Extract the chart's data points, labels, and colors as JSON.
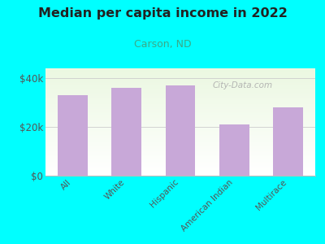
{
  "title": "Median per capita income in 2022",
  "subtitle": "Carson, ND",
  "categories": [
    "All",
    "White",
    "Hispanic",
    "American Indian",
    "Multirace"
  ],
  "values": [
    33000,
    36000,
    37000,
    21000,
    28000
  ],
  "bar_color": "#c8a8d8",
  "background_color": "#00FFFF",
  "title_color": "#222222",
  "subtitle_color": "#3aaa88",
  "ylabel_ticks": [
    0,
    20000,
    40000
  ],
  "ylabel_labels": [
    "$0",
    "$20k",
    "$40k"
  ],
  "ylim": [
    0,
    44000
  ],
  "watermark": "City-Data.com",
  "tick_color": "#555555",
  "grid_color": "#cccccc"
}
